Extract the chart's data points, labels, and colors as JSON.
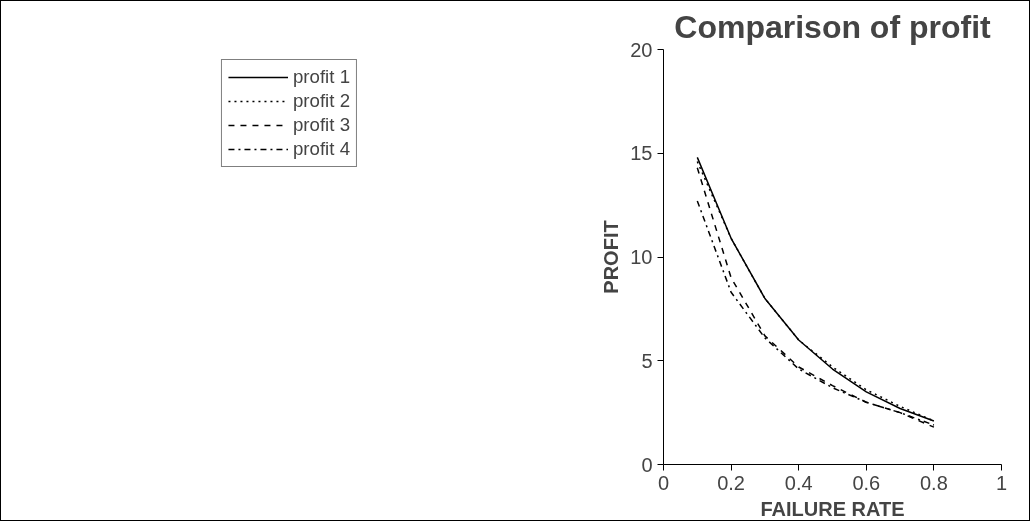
{
  "chart_data": {
    "type": "line",
    "title": "Comparison of profit",
    "xlabel": "FAILURE RATE",
    "ylabel": "PROFIT",
    "x": [
      0.1,
      0.2,
      0.3,
      0.4,
      0.5,
      0.6,
      0.7,
      0.8
    ],
    "series": [
      {
        "name": "profit 1",
        "color": "#000000",
        "line_style": "solid",
        "values": [
          14.8,
          10.9,
          8.0,
          6.0,
          4.6,
          3.5,
          2.7,
          2.1
        ]
      },
      {
        "name": "profit 2",
        "color": "#000000",
        "line_style": "dotted",
        "values": [
          14.6,
          10.9,
          8.0,
          6.0,
          4.7,
          3.6,
          2.8,
          2.1
        ]
      },
      {
        "name": "profit 3",
        "color": "#000000",
        "line_style": "dashed",
        "values": [
          14.3,
          9.0,
          6.2,
          4.7,
          3.8,
          3.0,
          2.5,
          1.8
        ]
      },
      {
        "name": "profit 4",
        "color": "#000000",
        "line_style": "dashdot",
        "values": [
          12.7,
          8.3,
          6.1,
          4.6,
          3.7,
          3.0,
          2.5,
          1.9
        ]
      }
    ],
    "xlim": [
      0,
      1
    ],
    "xticks": [
      0,
      0.2,
      0.4,
      0.6,
      0.8,
      1
    ],
    "ylim": [
      0,
      20
    ],
    "yticks": [
      0,
      5,
      10,
      15,
      20
    ],
    "grid": false,
    "legend": "left",
    "marker": "none"
  }
}
